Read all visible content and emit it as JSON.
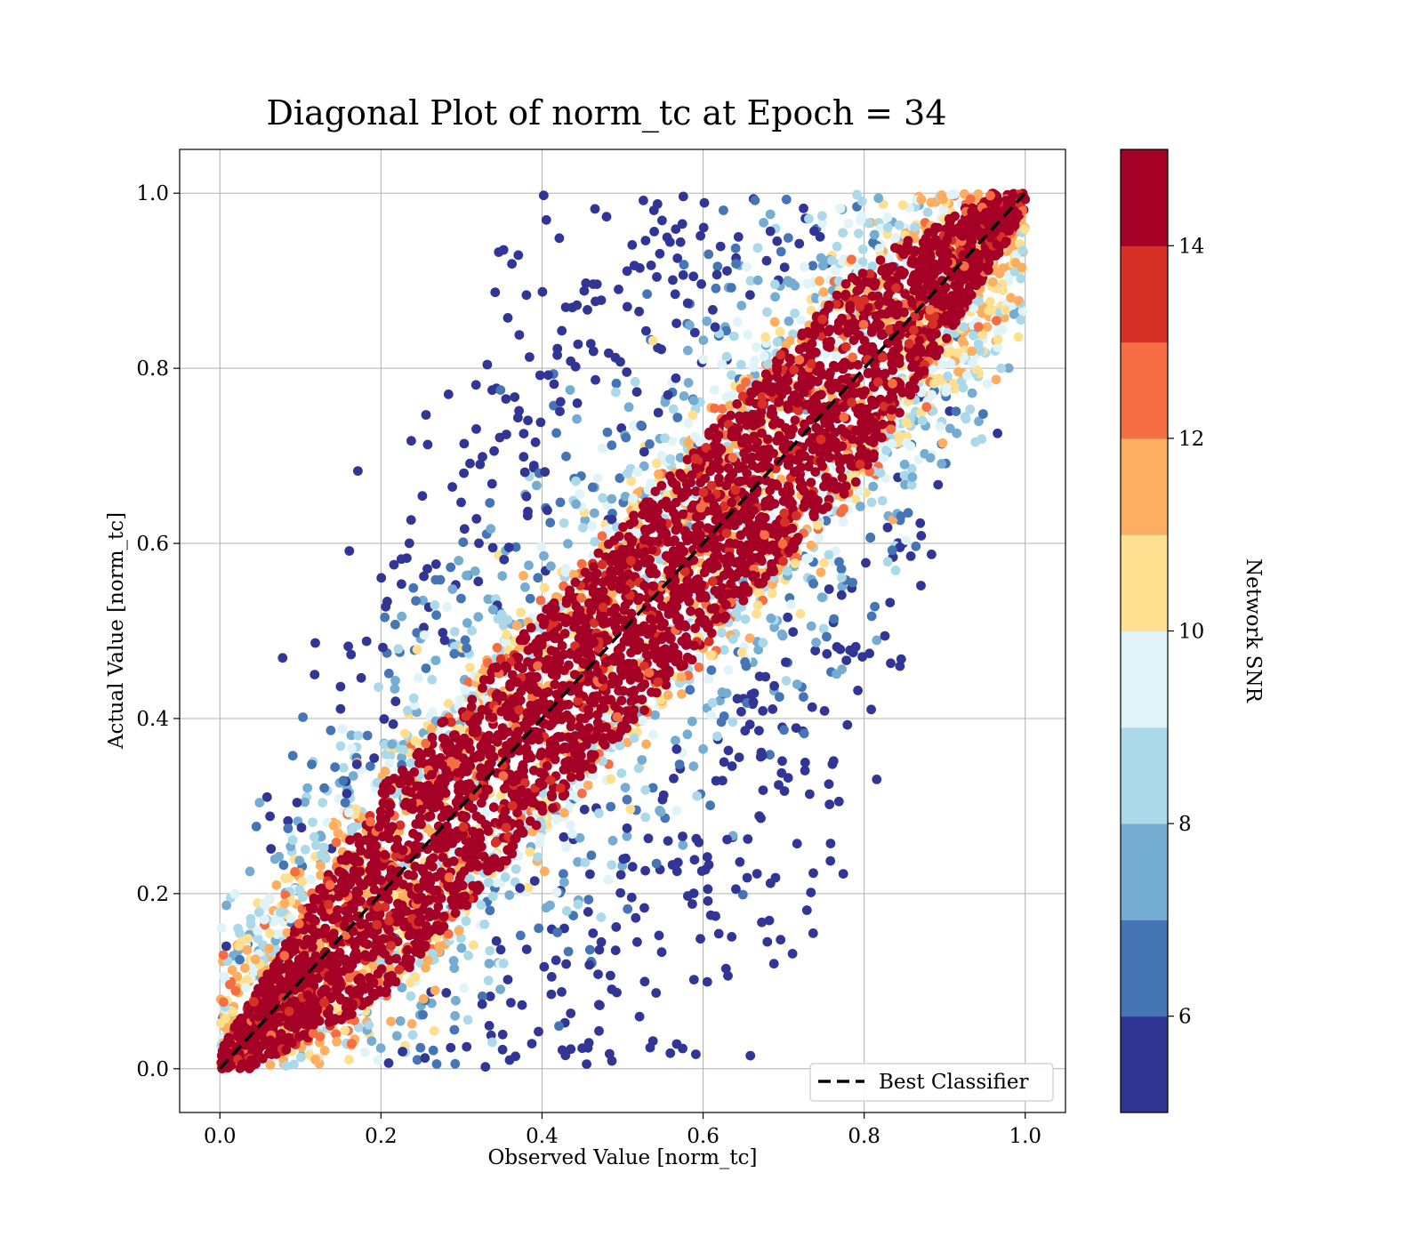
{
  "chart_data": {
    "type": "scatter",
    "title": "Diagonal Plot of norm_tc at Epoch = 34",
    "xlabel": "Observed Value [norm_tc]",
    "ylabel": "Actual Value [norm_tc]",
    "xlim": [
      -0.05,
      1.05
    ],
    "ylim": [
      -0.05,
      1.05
    ],
    "xticks": [
      0.0,
      0.2,
      0.4,
      0.6,
      0.8,
      1.0
    ],
    "yticks": [
      0.0,
      0.2,
      0.4,
      0.6,
      0.8,
      1.0
    ],
    "xtick_labels": [
      "0.0",
      "0.2",
      "0.4",
      "0.6",
      "0.8",
      "1.0"
    ],
    "ytick_labels": [
      "0.0",
      "0.2",
      "0.4",
      "0.6",
      "0.8",
      "1.0"
    ],
    "grid": true,
    "reference_line": {
      "label": "Best Classifier",
      "x": [
        0,
        1
      ],
      "y": [
        0,
        1
      ],
      "style": "dashed",
      "color": "#000000"
    },
    "legend": {
      "placement": "lower-right",
      "entries": [
        "Best Classifier"
      ]
    },
    "colorbar": {
      "label": "Network SNR",
      "range": [
        5,
        15
      ],
      "ticks": [
        6,
        8,
        10,
        12,
        14
      ],
      "tick_labels": [
        "6",
        "8",
        "10",
        "12",
        "14"
      ],
      "colors": [
        "#313695",
        "#4575b4",
        "#74add1",
        "#abd9e9",
        "#e0f3f8",
        "#fee090",
        "#fdae61",
        "#f46d43",
        "#d73027",
        "#a50026"
      ]
    },
    "points_description_rule": "Dense band of high-SNR points along diagonal y=x; lower-SNR points spread widely above and below."
  }
}
